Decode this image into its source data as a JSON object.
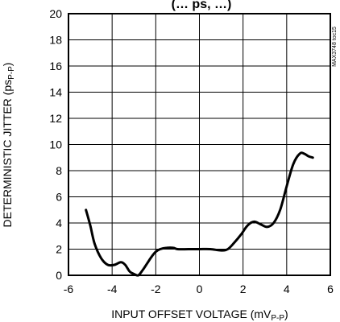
{
  "chart_data": {
    "type": "line",
    "title_fragment": "(… ps, …)",
    "xlabel": "INPUT OFFSET VOLTAGE (mV",
    "xlabel_sub": "P-P",
    "xlabel_close": ")",
    "ylabel": "DETERMINISTIC JITTER (ps",
    "ylabel_sub": "P-P",
    "ylabel_close": ")",
    "side_note": "MAX3748 toc15",
    "xlim": [
      -6,
      6
    ],
    "ylim": [
      0,
      20
    ],
    "xticks": [
      -6,
      -4,
      -2,
      0,
      2,
      4,
      6
    ],
    "yticks": [
      0,
      2,
      4,
      6,
      8,
      10,
      12,
      14,
      16,
      18,
      20
    ],
    "grid": true,
    "series": [
      {
        "x": [
          -5.2,
          -5.0,
          -4.8,
          -4.5,
          -4.2,
          -3.9,
          -3.6,
          -3.4,
          -3.2,
          -3.0,
          -2.8,
          -2.6,
          -2.4,
          -2.2,
          -2.0,
          -1.8,
          -1.5,
          -1.2,
          -1.0,
          -0.5,
          0.0,
          0.5,
          1.0,
          1.3,
          1.6,
          1.9,
          2.2,
          2.5,
          2.8,
          3.1,
          3.4,
          3.7,
          4.0,
          4.3,
          4.6,
          4.8,
          5.0,
          5.2
        ],
        "y": [
          5.0,
          3.8,
          2.4,
          1.3,
          0.8,
          0.8,
          1.0,
          0.8,
          0.3,
          0.1,
          0.0,
          0.4,
          0.9,
          1.4,
          1.8,
          2.0,
          2.1,
          2.1,
          2.0,
          2.0,
          2.0,
          2.0,
          1.9,
          2.0,
          2.5,
          3.1,
          3.8,
          4.1,
          3.9,
          3.7,
          4.0,
          5.0,
          6.8,
          8.5,
          9.3,
          9.3,
          9.1,
          9.0
        ]
      }
    ]
  }
}
